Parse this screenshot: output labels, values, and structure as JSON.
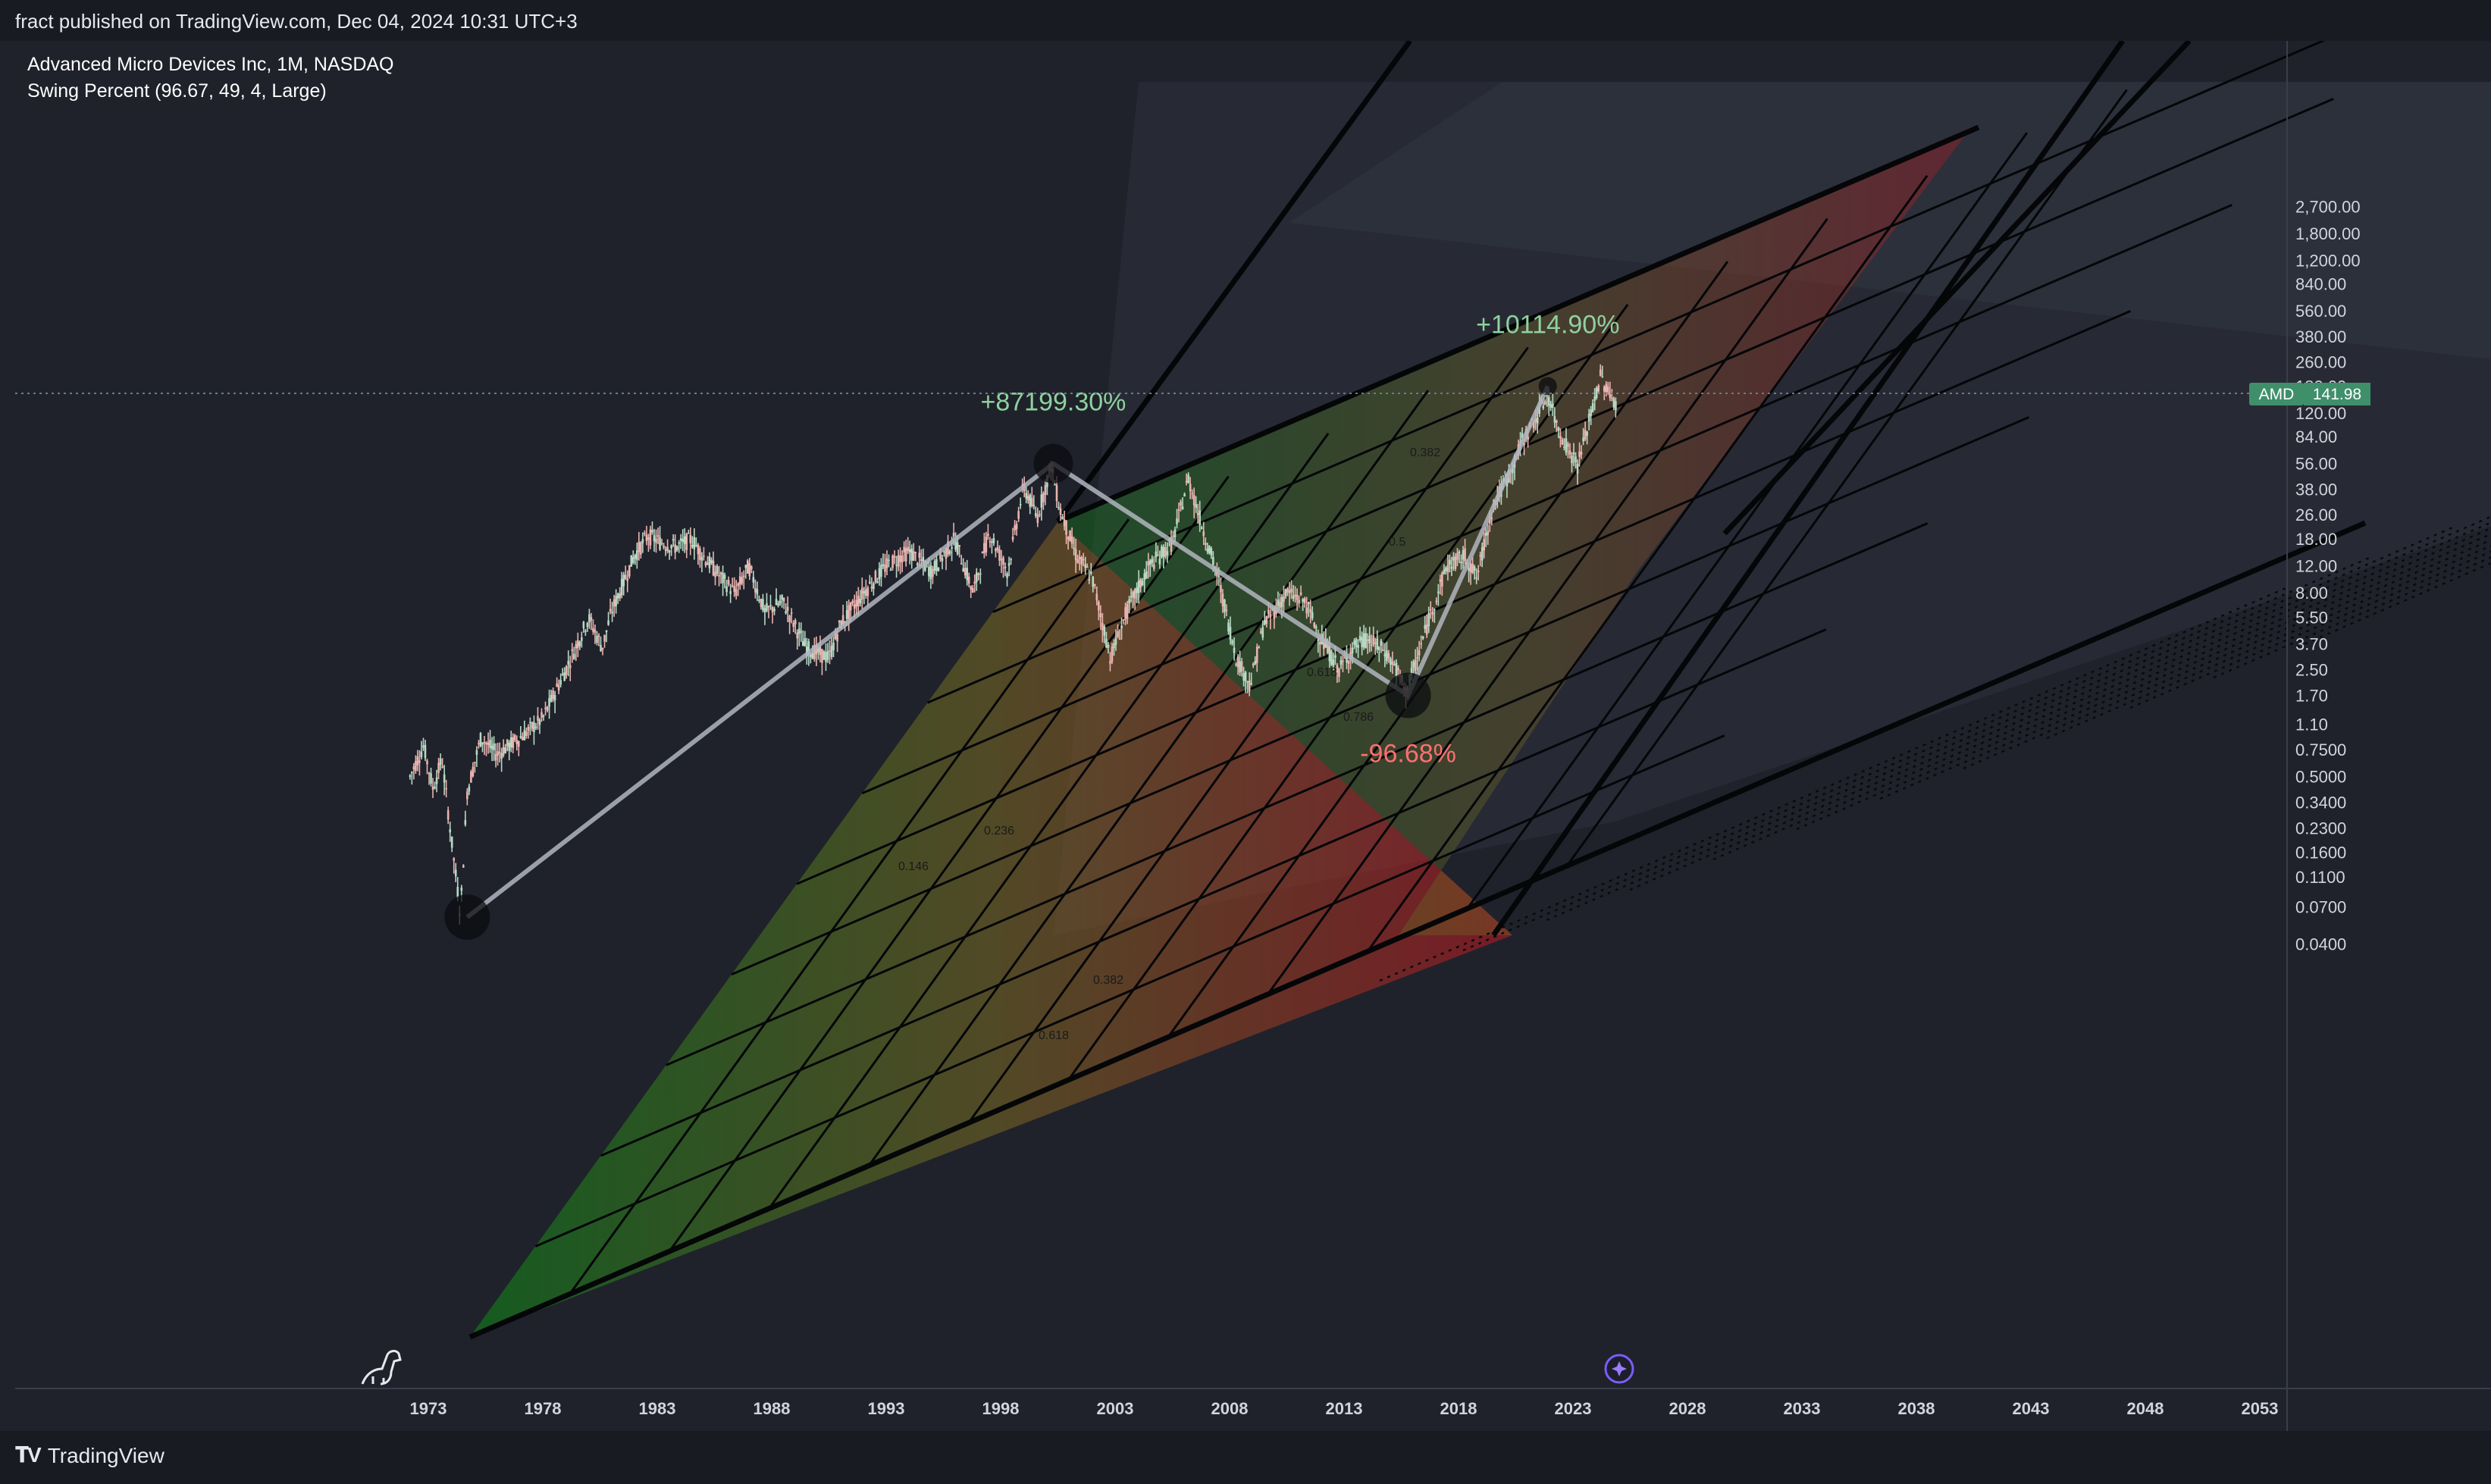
{
  "header": {
    "published_text": "fract published on TradingView.com, Dec 04, 2024 10:31 UTC+3"
  },
  "legend": {
    "symbol_line": "Advanced Micro Devices Inc, 1M, NASDAQ",
    "indicator_line": "Swing Percent (96.67, 49, 4, Large)"
  },
  "price_tag": {
    "ticker": "AMD",
    "value": "141.98"
  },
  "footer": {
    "brand": "TradingView"
  },
  "colors": {
    "background": "#1f222b",
    "up": "#26a69a",
    "down": "#ef5350",
    "swing_line": "#b2b5be",
    "price_tag": "#3f8f6b"
  },
  "chart_data": {
    "type": "line",
    "symbol": "AMD",
    "interval": "1M",
    "exchange": "NASDAQ",
    "y_scale": "log",
    "ylim": [
      0.035,
      2700
    ],
    "xlim": [
      1965,
      2060
    ],
    "y_ticks": [
      "2,700.00",
      "1,800.00",
      "1,200.00",
      "840.00",
      "560.00",
      "380.00",
      "260.00",
      "180.00",
      "120.00",
      "84.00",
      "56.00",
      "38.00",
      "26.00",
      "18.00",
      "12.00",
      "8.00",
      "5.50",
      "3.70",
      "2.50",
      "1.70",
      "1.10",
      "0.7500",
      "0.5000",
      "0.3400",
      "0.2300",
      "0.1600",
      "0.1100",
      "0.0700",
      "0.0400"
    ],
    "x_ticks": [
      "1973",
      "1978",
      "1983",
      "1988",
      "1993",
      "1998",
      "2003",
      "2008",
      "2013",
      "2018",
      "2023",
      "2028",
      "2033",
      "2038",
      "2043",
      "2048",
      "2053"
    ],
    "series": [
      {
        "x": [
          1972.2,
          1972.8,
          1973.2,
          1973.6,
          1974.0,
          1974.4,
          1974.7,
          1975.3,
          1976.0,
          1977.0,
          1978.0,
          1979.0,
          1980.0,
          1980.6,
          1981.0,
          1982.0,
          1982.6,
          1983.2,
          1983.8,
          1984.5,
          1985.0,
          1985.8,
          1986.4,
          1987.0,
          1987.7,
          1988.5,
          1989.5,
          1990.5,
          1991.0,
          1992.0,
          1993.0,
          1994.0,
          1995.0,
          1996.0,
          1996.8,
          1997.5,
          1998.3,
          1999.0,
          1999.6,
          2000.2,
          2000.6,
          2001.3,
          2002.0,
          2002.8,
          2003.5,
          2004.5,
          2005.5,
          2006.2,
          2006.8,
          2007.5,
          2008.3,
          2008.9,
          2009.5,
          2010.5,
          2011.3,
          2012.0,
          2012.8,
          2013.4,
          2014.0,
          2014.8,
          2015.3,
          2015.7,
          2016.2,
          2016.8,
          2017.5,
          2018.3,
          2018.8,
          2019.5,
          2020.3,
          2020.8,
          2021.5,
          2021.9,
          2022.3,
          2022.8,
          2023.2,
          2023.8,
          2024.2,
          2024.6,
          2024.9
        ],
        "y": [
          0.5,
          0.8,
          0.42,
          0.65,
          0.2,
          0.063,
          0.4,
          0.9,
          0.7,
          0.9,
          1.2,
          2.5,
          5.5,
          3.5,
          6,
          14,
          19,
          17,
          16,
          18,
          14,
          10,
          8,
          12,
          6,
          7,
          3.5,
          3,
          5,
          8,
          12,
          15,
          11,
          18,
          8,
          20,
          11,
          40,
          25,
          55,
          28,
          14,
          10,
          3,
          6,
          12,
          17,
          45,
          22,
          10,
          3,
          2,
          5,
          8,
          7,
          4,
          2.5,
          3.5,
          4,
          3.3,
          2.5,
          1.8,
          3,
          6,
          12,
          14,
          10,
          30,
          50,
          80,
          120,
          160,
          100,
          70,
          55,
          120,
          210,
          160,
          140
        ]
      }
    ],
    "annotations": [
      {
        "label": "+87199.30%",
        "x": 2000.3,
        "y": 56,
        "color": "#8fd19e"
      },
      {
        "label": "-96.68%",
        "x": 2015.8,
        "y": 1.7,
        "color": "#ff6f6f"
      },
      {
        "label": "+10114.90%",
        "x": 2021.9,
        "y": 180,
        "color": "#8fd19e"
      }
    ],
    "swing_points": [
      {
        "x": 1974.7,
        "y": 0.06
      },
      {
        "x": 2000.3,
        "y": 56
      },
      {
        "x": 2015.8,
        "y": 1.7
      },
      {
        "x": 2021.9,
        "y": 180
      }
    ],
    "fib_labels": [
      "0.382",
      "0.5",
      "0.618",
      "0.786",
      "0.236",
      "0.146",
      "0.382",
      "0.618"
    ]
  }
}
